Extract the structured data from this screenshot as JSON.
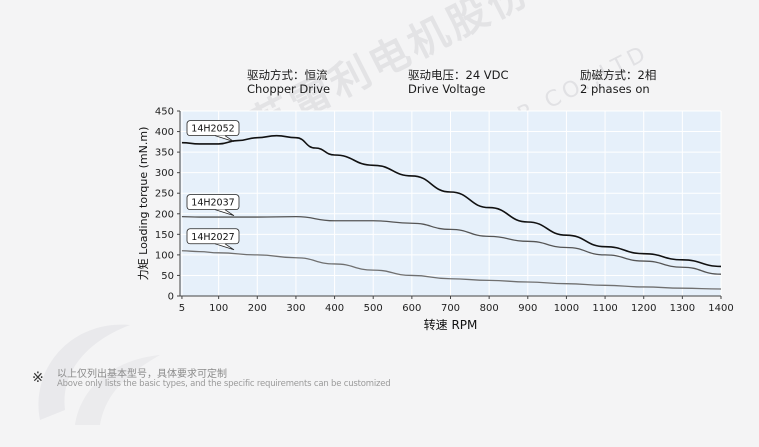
{
  "header": {
    "col1": {
      "cn": "驱动方式：恒流",
      "en": "Chopper Drive"
    },
    "col2": {
      "cn": "驱动电压：24 VDC",
      "en": "Drive Voltage"
    },
    "col3": {
      "cn": "励磁方式：2相",
      "en": "2 phases on"
    }
  },
  "footnote": {
    "mark": "※",
    "cn": "以上仅列出基本型号，具体要求可定制",
    "en": "Above only lists the basic types, and the specific requirements can be customized"
  },
  "watermark": {
    "cn": "江苏雷利电机股份有限公司",
    "en": "JIANGSU LEILI MOTOR CO.,LTD"
  },
  "colors": {
    "plot_bg": "#e6f0fa",
    "grid": "#ffffff",
    "series_dark": "#111111",
    "series_mid": "#555555",
    "series_light": "#707070"
  },
  "chart_data": {
    "type": "line",
    "xlabel": "转速 RPM",
    "ylabel": "力矩 Loading torque (mN.m)",
    "xlim": [
      0,
      1400
    ],
    "ylim": [
      0,
      450
    ],
    "xticks": [
      5,
      100,
      200,
      300,
      400,
      500,
      600,
      700,
      800,
      900,
      1000,
      1100,
      1200,
      1300,
      1400
    ],
    "yticks": [
      0,
      50,
      100,
      150,
      200,
      250,
      300,
      350,
      400,
      450
    ],
    "grid": true,
    "series": [
      {
        "name": "14H2052",
        "x": [
          5,
          50,
          100,
          150,
          200,
          250,
          300,
          350,
          400,
          500,
          600,
          700,
          800,
          900,
          1000,
          1100,
          1200,
          1300,
          1400
        ],
        "y": [
          373,
          370,
          370,
          378,
          385,
          390,
          385,
          360,
          343,
          318,
          292,
          253,
          215,
          180,
          148,
          120,
          103,
          88,
          72
        ]
      },
      {
        "name": "14H2037",
        "x": [
          5,
          50,
          100,
          200,
          300,
          400,
          500,
          600,
          700,
          800,
          900,
          1000,
          1100,
          1200,
          1300,
          1400
        ],
        "y": [
          193,
          192,
          192,
          192,
          193,
          183,
          183,
          177,
          162,
          145,
          133,
          118,
          100,
          85,
          70,
          53
        ]
      },
      {
        "name": "14H2027",
        "x": [
          5,
          50,
          100,
          200,
          300,
          400,
          500,
          600,
          700,
          800,
          900,
          1000,
          1100,
          1200,
          1300,
          1400
        ],
        "y": [
          110,
          108,
          105,
          100,
          93,
          78,
          63,
          50,
          42,
          38,
          34,
          30,
          26,
          22,
          19,
          17
        ]
      }
    ]
  }
}
